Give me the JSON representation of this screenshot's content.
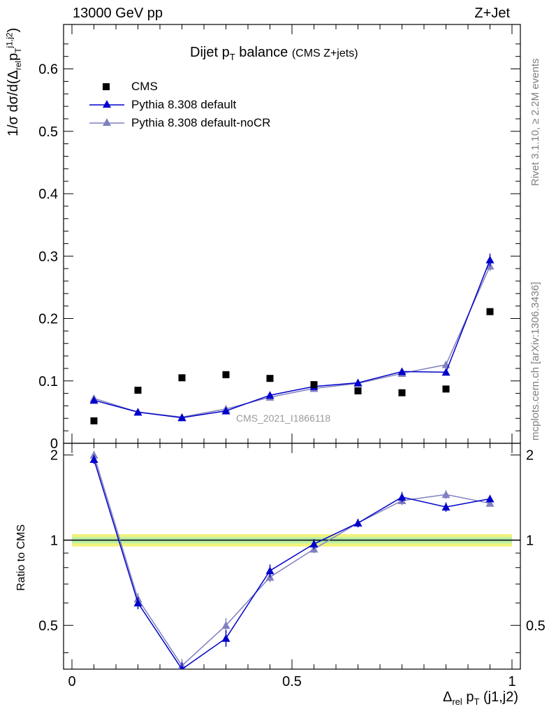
{
  "header": {
    "energy_label": "13000 GeV pp",
    "process_label": "Z+Jet"
  },
  "side_labels": {
    "rivet": "Rivet 3.1.10, ≥ 2.2M events",
    "site": "mcplots.cern.ch [arXiv:1306.3436]"
  },
  "plot_title": {
    "main": "Dijet p",
    "main_sub": "T",
    "main_rest": " balance",
    "note": "(CMS Z+jets)"
  },
  "watermark": "CMS_2021_I1866118",
  "legend": {
    "items": [
      {
        "label": "CMS",
        "color": "#000000",
        "marker": "square",
        "line": false
      },
      {
        "label": "Pythia 8.308 default",
        "color": "#0000cc",
        "marker": "triangle",
        "line": true
      },
      {
        "label": "Pythia 8.308 default-noCR",
        "color": "#8080c0",
        "marker": "triangle",
        "line": true
      }
    ]
  },
  "colors": {
    "cms": "#000000",
    "default": "#0000cc",
    "nocr": "#8080c0",
    "band_outer": "#f2f27a",
    "band_inner": "#b8f0a8"
  },
  "chart_data": [
    {
      "type": "scatter",
      "title": "Dijet pT balance (CMS Z+jets)",
      "xlabel": "Δrel pT (j1,j2)",
      "ylabel": "1/σ dσ/d(Δrel pT j1,j2)",
      "xlim": [
        0,
        1
      ],
      "ylim": [
        0,
        0.66
      ],
      "x_ticks": [
        0,
        0.5,
        1
      ],
      "y_ticks": [
        0,
        0.1,
        0.2,
        0.3,
        0.4,
        0.5,
        0.6
      ],
      "x": [
        0.05,
        0.15,
        0.25,
        0.35,
        0.45,
        0.55,
        0.65,
        0.75,
        0.85,
        0.95
      ],
      "series": [
        {
          "name": "CMS",
          "values": [
            0.036,
            0.085,
            0.105,
            0.11,
            0.104,
            0.094,
            0.084,
            0.081,
            0.087,
            0.211
          ]
        },
        {
          "name": "Pythia 8.308 default",
          "values": [
            0.069,
            0.05,
            0.041,
            0.052,
            0.077,
            0.091,
            0.097,
            0.115,
            0.114,
            0.294
          ],
          "errors": [
            0.002,
            0.002,
            0.002,
            0.003,
            0.003,
            0.003,
            0.003,
            0.005,
            0.005,
            0.01
          ]
        },
        {
          "name": "Pythia 8.308 default-noCR",
          "values": [
            0.072,
            0.05,
            0.042,
            0.055,
            0.074,
            0.088,
            0.096,
            0.112,
            0.126,
            0.284
          ],
          "errors": [
            0.002,
            0.002,
            0.002,
            0.003,
            0.003,
            0.003,
            0.003,
            0.004,
            0.005,
            0.008
          ]
        }
      ],
      "grid": false,
      "legend_position": "top-left"
    },
    {
      "type": "line",
      "ylabel": "Ratio to CMS",
      "xlabel": "Δrel pT (j1,j2)",
      "xlim": [
        0,
        1
      ],
      "ylim": [
        0.35,
        2.2
      ],
      "x_ticks": [
        0,
        0.5,
        1
      ],
      "y_ticks": [
        0.5,
        1,
        2
      ],
      "y_scale": "log",
      "x": [
        0.05,
        0.15,
        0.25,
        0.35,
        0.45,
        0.55,
        0.65,
        0.75,
        0.85,
        0.95
      ],
      "series": [
        {
          "name": "Pythia 8.308 default",
          "values": [
            1.93,
            0.6,
            0.35,
            0.45,
            0.78,
            0.97,
            1.15,
            1.42,
            1.31,
            1.4
          ],
          "errors": [
            0.07,
            0.03,
            0.02,
            0.03,
            0.04,
            0.04,
            0.04,
            0.06,
            0.05,
            0.04
          ]
        },
        {
          "name": "Pythia 8.308 default-noCR",
          "values": [
            2.0,
            0.62,
            0.36,
            0.5,
            0.74,
            0.93,
            1.15,
            1.38,
            1.45,
            1.35
          ],
          "errors": [
            0.07,
            0.03,
            0.02,
            0.03,
            0.03,
            0.03,
            0.04,
            0.05,
            0.05,
            0.03
          ]
        }
      ],
      "reference_line": 1,
      "band": {
        "upper": 1.05,
        "lower": 0.95
      }
    }
  ]
}
